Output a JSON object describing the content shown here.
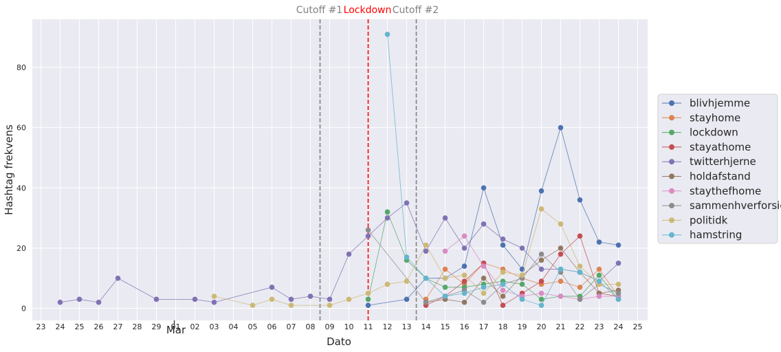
{
  "chart_data": {
    "type": "line",
    "xlabel": "Dato",
    "ylabel": "Hashtag frekvens",
    "month_label": "Mar",
    "x_ticks": [
      "23",
      "24",
      "25",
      "26",
      "27",
      "28",
      "29",
      "01",
      "02",
      "03",
      "04",
      "05",
      "06",
      "07",
      "08",
      "09",
      "10",
      "11",
      "12",
      "13",
      "14",
      "15",
      "16",
      "17",
      "18",
      "19",
      "20",
      "21",
      "22",
      "23",
      "24",
      "25"
    ],
    "x_range": [
      "Feb 23",
      "Mar 25"
    ],
    "y_ticks": [
      0,
      20,
      40,
      60,
      80
    ],
    "ylim": [
      -4,
      96
    ],
    "grid": true,
    "legend_position": "right",
    "vertical_lines": [
      {
        "label": "Cutoff #1",
        "position": "between Mar 08 and Mar 09",
        "color": "#808080",
        "style": "dashed"
      },
      {
        "label": "Lockdown",
        "position": "Mar 11",
        "color": "#ff0000",
        "style": "dashed"
      },
      {
        "label": "Cutoff #2",
        "position": "between Mar 13 and Mar 14",
        "color": "#808080",
        "style": "dashed"
      }
    ],
    "series": [
      {
        "name": "blivhjemme",
        "color": "#4c72b0",
        "points": [
          [
            "Mar 11",
            1
          ],
          [
            "Mar 13",
            3
          ],
          [
            "Mar 14",
            10
          ],
          [
            "Mar 15",
            10
          ],
          [
            "Mar 16",
            14
          ],
          [
            "Mar 17",
            40
          ],
          [
            "Mar 18",
            21
          ],
          [
            "Mar 19",
            13
          ],
          [
            "Mar 20",
            39
          ],
          [
            "Mar 21",
            60
          ],
          [
            "Mar 22",
            36
          ],
          [
            "Mar 23",
            22
          ],
          [
            "Mar 24",
            21
          ]
        ]
      },
      {
        "name": "stayhome",
        "color": "#dd8452",
        "points": [
          [
            "Mar 14",
            3
          ],
          [
            "Mar 15",
            13
          ],
          [
            "Mar 16",
            8
          ],
          [
            "Mar 17",
            15
          ],
          [
            "Mar 18",
            13
          ],
          [
            "Mar 19",
            10
          ],
          [
            "Mar 20",
            8
          ],
          [
            "Mar 21",
            9
          ],
          [
            "Mar 22",
            7
          ],
          [
            "Mar 23",
            13
          ],
          [
            "Mar 24",
            4
          ]
        ]
      },
      {
        "name": "lockdown",
        "color": "#55a868",
        "points": [
          [
            "Mar 11",
            3
          ],
          [
            "Mar 12",
            32
          ],
          [
            "Mar 13",
            16
          ],
          [
            "Mar 14",
            10
          ],
          [
            "Mar 15",
            7
          ],
          [
            "Mar 16",
            7
          ],
          [
            "Mar 17",
            8
          ],
          [
            "Mar 18",
            9
          ],
          [
            "Mar 19",
            8
          ],
          [
            "Mar 20",
            3
          ],
          [
            "Mar 21",
            4
          ],
          [
            "Mar 22",
            4
          ],
          [
            "Mar 23",
            11
          ],
          [
            "Mar 24",
            3
          ]
        ]
      },
      {
        "name": "stayathome",
        "color": "#c44e52",
        "points": [
          [
            "Mar 14",
            1
          ],
          [
            "Mar 15",
            4
          ],
          [
            "Mar 16",
            9
          ],
          [
            "Mar 17",
            15
          ],
          [
            "Mar 18",
            1
          ],
          [
            "Mar 19",
            5
          ],
          [
            "Mar 20",
            9
          ],
          [
            "Mar 21",
            18
          ],
          [
            "Mar 22",
            24
          ],
          [
            "Mar 23",
            5
          ],
          [
            "Mar 24",
            4
          ]
        ]
      },
      {
        "name": "twitterhjerne",
        "color": "#8172b3",
        "points": [
          [
            "Feb 24",
            2
          ],
          [
            "Feb 25",
            3
          ],
          [
            "Feb 26",
            2
          ],
          [
            "Feb 27",
            10
          ],
          [
            "Feb 29",
            3
          ],
          [
            "Mar 02",
            3
          ],
          [
            "Mar 03",
            2
          ],
          [
            "Mar 06",
            7
          ],
          [
            "Mar 07",
            3
          ],
          [
            "Mar 08",
            4
          ],
          [
            "Mar 09",
            3
          ],
          [
            "Mar 10",
            18
          ],
          [
            "Mar 11",
            24
          ],
          [
            "Mar 12",
            30
          ],
          [
            "Mar 13",
            35
          ],
          [
            "Mar 14",
            19
          ],
          [
            "Mar 15",
            30
          ],
          [
            "Mar 16",
            20
          ],
          [
            "Mar 17",
            28
          ],
          [
            "Mar 18",
            23
          ],
          [
            "Mar 19",
            20
          ],
          [
            "Mar 20",
            13
          ],
          [
            "Mar 21",
            13
          ],
          [
            "Mar 22",
            12
          ],
          [
            "Mar 23",
            9
          ],
          [
            "Mar 24",
            15
          ]
        ]
      },
      {
        "name": "holdafstand",
        "color": "#937860",
        "points": [
          [
            "Mar 14",
            2
          ],
          [
            "Mar 15",
            3
          ],
          [
            "Mar 16",
            2
          ],
          [
            "Mar 17",
            10
          ],
          [
            "Mar 18",
            4
          ],
          [
            "Mar 19",
            11
          ],
          [
            "Mar 20",
            16
          ],
          [
            "Mar 21",
            20
          ],
          [
            "Mar 22",
            12
          ],
          [
            "Mar 23",
            5
          ],
          [
            "Mar 24",
            6
          ]
        ]
      },
      {
        "name": "staythefhome",
        "color": "#da8bc3",
        "points": [
          [
            "Mar 15",
            19
          ],
          [
            "Mar 16",
            24
          ],
          [
            "Mar 17",
            14
          ],
          [
            "Mar 18",
            6
          ],
          [
            "Mar 19",
            4
          ],
          [
            "Mar 20",
            5
          ],
          [
            "Mar 21",
            4
          ],
          [
            "Mar 22",
            3
          ],
          [
            "Mar 23",
            4
          ],
          [
            "Mar 24",
            4
          ]
        ]
      },
      {
        "name": "sammenhverforsig",
        "color": "#8c8c8c",
        "points": [
          [
            "Mar 11",
            26
          ],
          [
            "Mar 14",
            2
          ],
          [
            "Mar 15",
            4
          ],
          [
            "Mar 16",
            6
          ],
          [
            "Mar 17",
            2
          ],
          [
            "Mar 18",
            8
          ],
          [
            "Mar 19",
            10
          ],
          [
            "Mar 20",
            18
          ],
          [
            "Mar 21",
            12
          ],
          [
            "Mar 22",
            3
          ],
          [
            "Mar 23",
            8
          ],
          [
            "Mar 24",
            5
          ]
        ]
      },
      {
        "name": "politidk",
        "color": "#ccb974",
        "points": [
          [
            "Mar 03",
            4
          ],
          [
            "Mar 05",
            1
          ],
          [
            "Mar 06",
            3
          ],
          [
            "Mar 07",
            1
          ],
          [
            "Mar 09",
            1
          ],
          [
            "Mar 10",
            3
          ],
          [
            "Mar 11",
            5
          ],
          [
            "Mar 12",
            8
          ],
          [
            "Mar 13",
            9
          ],
          [
            "Mar 14",
            21
          ],
          [
            "Mar 15",
            10
          ],
          [
            "Mar 16",
            11
          ],
          [
            "Mar 17",
            5
          ],
          [
            "Mar 18",
            12
          ],
          [
            "Mar 19",
            11
          ],
          [
            "Mar 20",
            33
          ],
          [
            "Mar 21",
            28
          ],
          [
            "Mar 22",
            14
          ],
          [
            "Mar 23",
            8
          ],
          [
            "Mar 24",
            8
          ]
        ]
      },
      {
        "name": "hamstring",
        "color": "#64b5cd",
        "points": [
          [
            "Mar 12",
            91
          ],
          [
            "Mar 13",
            17
          ],
          [
            "Mar 14",
            10
          ],
          [
            "Mar 15",
            4
          ],
          [
            "Mar 16",
            5
          ],
          [
            "Mar 17",
            7
          ],
          [
            "Mar 18",
            8
          ],
          [
            "Mar 19",
            3
          ],
          [
            "Mar 20",
            1
          ],
          [
            "Mar 21",
            13
          ],
          [
            "Mar 22",
            12
          ],
          [
            "Mar 23",
            9
          ],
          [
            "Mar 24",
            3
          ]
        ]
      }
    ]
  }
}
